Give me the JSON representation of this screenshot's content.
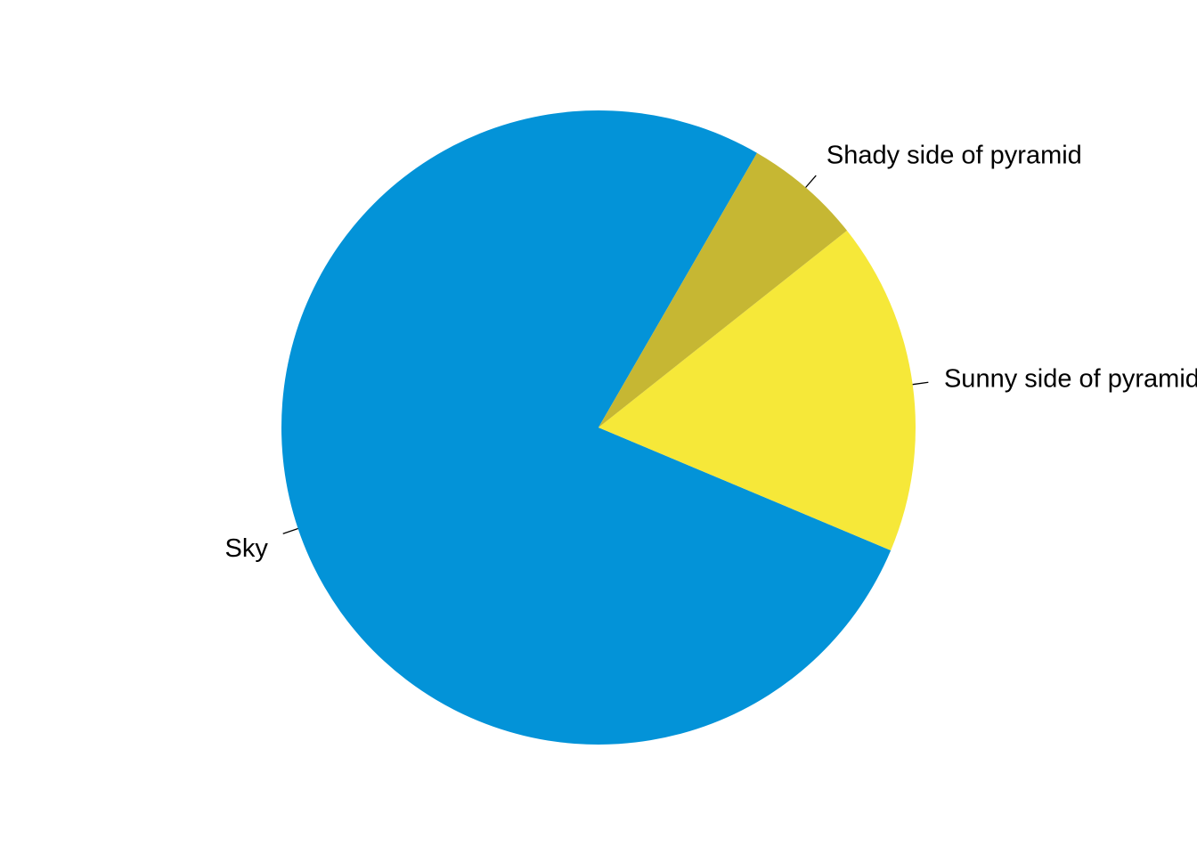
{
  "chart_data": {
    "type": "pie",
    "title": "",
    "direction": "counterclockwise",
    "start_angle_deg": 60,
    "slices": [
      {
        "label": "Sky",
        "value": 0.77,
        "color": "#0393D8"
      },
      {
        "label": "Sunny side of pyramid",
        "value": 0.17,
        "color": "#F6E839"
      },
      {
        "label": "Shady side of pyramid",
        "value": 0.06,
        "color": "#C6B733"
      }
    ]
  }
}
